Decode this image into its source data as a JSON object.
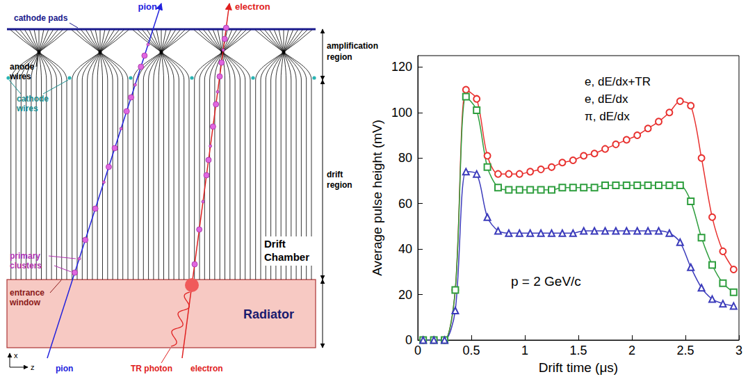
{
  "diagram": {
    "texts": {
      "cathode_pads": "cathode pads",
      "pion_top": "pion",
      "electron_top": "electron",
      "amplification": "amplification region",
      "anode_wires": "anode wires",
      "cathode_wires": "cathode wires",
      "drift_region": "drift region",
      "primary_clusters": "primary clusters",
      "drift_chamber": "Drift Chamber",
      "entrance_window": "entrance window",
      "radiator": "Radiator",
      "pion_bottom": "pion",
      "tr_photon": "TR photon",
      "electron_bottom": "electron",
      "axis_x": "x",
      "axis_z": "z"
    }
  },
  "chart_data": {
    "type": "line",
    "x_label": "Drift time (μs)",
    "y_label": "Average pulse height (mV)",
    "annotation": "p = 2 GeV/c",
    "x": [
      0.05,
      0.15,
      0.25,
      0.35,
      0.45,
      0.55,
      0.65,
      0.75,
      0.85,
      0.95,
      1.05,
      1.15,
      1.25,
      1.35,
      1.45,
      1.55,
      1.65,
      1.75,
      1.85,
      1.95,
      2.05,
      2.15,
      2.25,
      2.35,
      2.45,
      2.55,
      2.65,
      2.75,
      2.85,
      2.95
    ],
    "series": [
      {
        "name": "e, dE/dx+TR",
        "color": "#e8312f",
        "marker": "circle",
        "values": [
          0,
          0,
          0,
          22,
          110,
          106,
          81,
          73,
          73,
          73,
          74,
          75,
          76,
          78,
          79,
          81,
          82,
          84,
          86,
          88,
          90,
          93,
          96,
          100,
          105,
          103,
          80,
          54,
          39,
          31
        ]
      },
      {
        "name": "e, dE/dx",
        "color": "#2e9e3e",
        "marker": "square",
        "values": [
          0,
          0,
          0,
          22,
          107,
          101,
          76,
          67,
          66,
          66,
          66,
          66,
          66,
          67,
          67,
          67,
          67,
          68,
          68,
          68,
          68,
          68,
          68,
          68,
          68,
          61,
          45,
          33,
          25,
          21
        ]
      },
      {
        "name": "π, dE/dx",
        "color": "#3b3bbb",
        "marker": "triangle",
        "values": [
          0,
          0,
          0,
          13,
          74,
          73,
          54,
          48,
          47,
          47,
          47,
          47,
          47,
          47,
          47,
          48,
          48,
          48,
          48,
          48,
          48,
          48,
          48,
          47,
          43,
          32,
          23,
          18,
          16,
          15
        ]
      }
    ],
    "xlim": [
      0,
      3
    ],
    "xticks": [
      0,
      0.5,
      1,
      1.5,
      2,
      2.5,
      3
    ],
    "ylim": [
      0,
      125
    ],
    "yticks": [
      0,
      20,
      40,
      60,
      80,
      100,
      120
    ],
    "grid": false,
    "legend": "top-right"
  }
}
